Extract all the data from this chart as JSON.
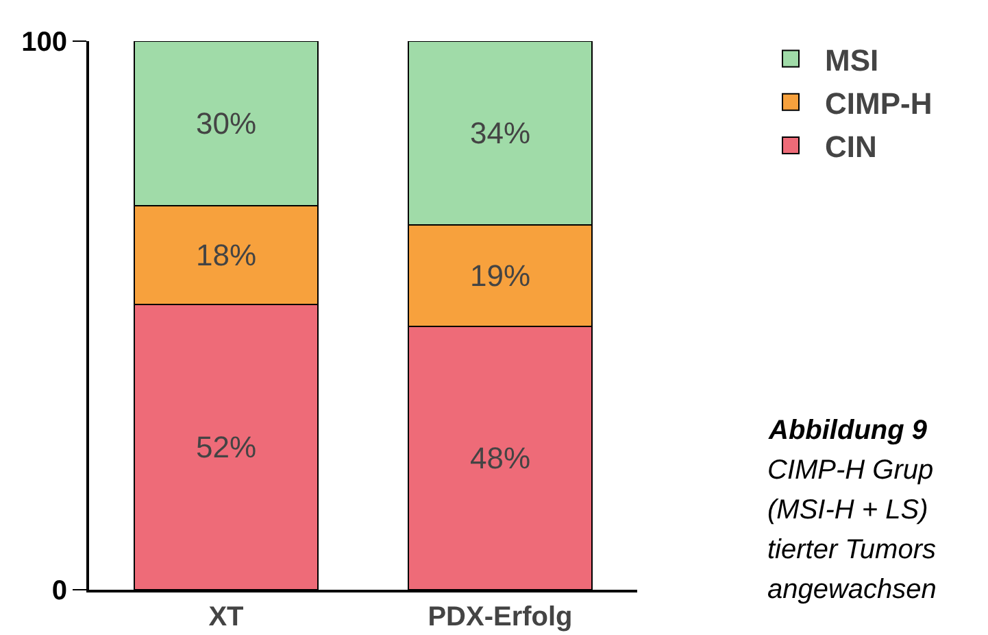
{
  "chart_data": {
    "type": "bar",
    "stacked": true,
    "categories": [
      "XT",
      "PDX-Erfolg"
    ],
    "series": [
      {
        "name": "CIN",
        "color": "#ee6b78",
        "values": [
          52,
          48
        ],
        "value_labels": [
          "52%",
          "48%"
        ]
      },
      {
        "name": "CIMP-H",
        "color": "#f7a13d",
        "values": [
          18,
          18.5
        ],
        "value_labels": [
          "18%",
          "19%"
        ]
      },
      {
        "name": "MSI",
        "color": "#a0dba8",
        "values": [
          30,
          33.5
        ],
        "value_labels": [
          "30%",
          "34%"
        ]
      }
    ],
    "ylim": [
      0,
      100
    ],
    "yticks": [
      0,
      100
    ],
    "legend": "right",
    "annotations": [
      "Abbildung 9",
      "CIMP-H Grup",
      "(MSI-H + LS)",
      "tierter Tumors",
      "angewachsen"
    ]
  }
}
